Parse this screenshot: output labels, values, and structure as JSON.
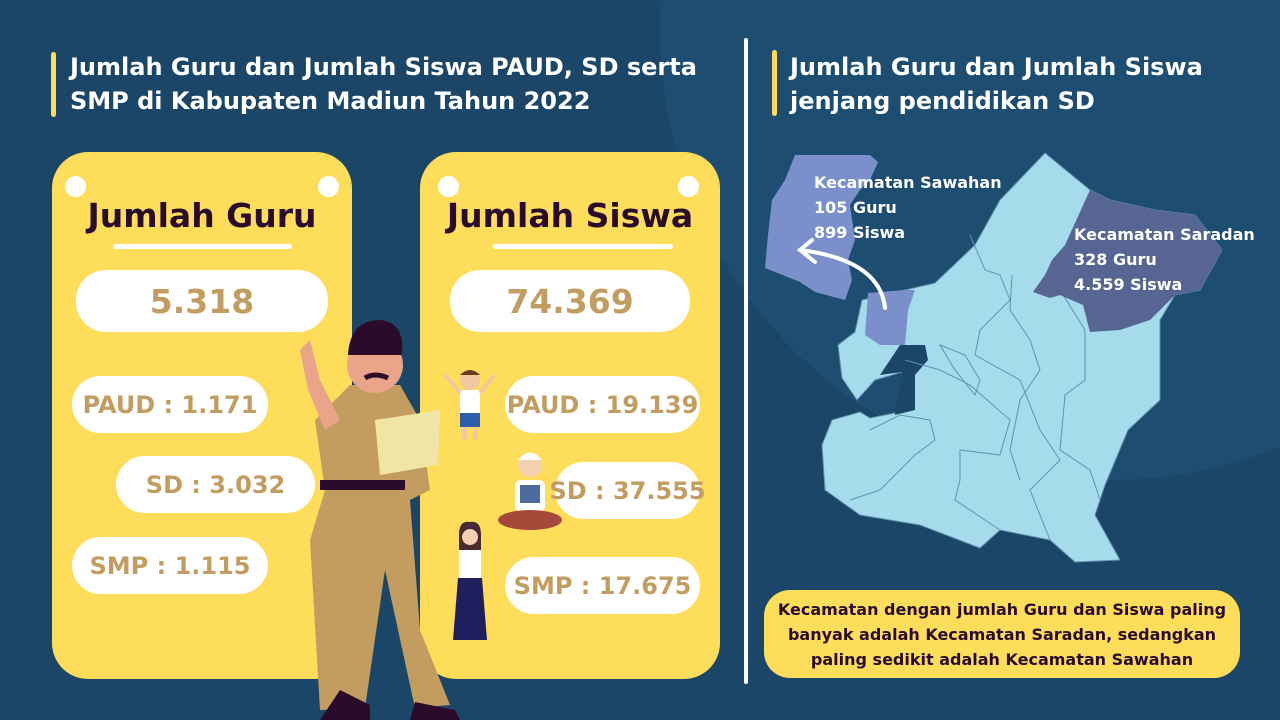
{
  "left": {
    "title_line1": "Jumlah Guru dan Jumlah Siswa PAUD, SD serta",
    "title_line2": "SMP di Kabupaten Madiun Tahun 2022"
  },
  "guru_card": {
    "title": "Jumlah Guru",
    "total": "5.318",
    "items": [
      "PAUD : 1.171",
      "SD : 3.032",
      "SMP : 1.115"
    ]
  },
  "siswa_card": {
    "title": "Jumlah Siswa",
    "total": "74.369",
    "items": [
      "PAUD : 19.139",
      "SD : 37.555",
      "SMP : 17.675"
    ]
  },
  "right": {
    "title_line1": "Jumlah Guru dan Jumlah Siswa",
    "title_line2": "jenjang pendidikan SD",
    "sawahan": {
      "name": "Kecamatan Sawahan",
      "guru": "105 Guru",
      "siswa": "899 Siswa"
    },
    "saradan": {
      "name": "Kecamatan Saradan",
      "guru": "328 Guru",
      "siswa": "4.559 Siswa"
    },
    "note": "Kecamatan dengan jumlah Guru dan Siswa paling banyak adalah Kecamatan Saradan, sedangkan paling sedikit adalah Kecamatan Sawahan"
  },
  "colors": {
    "background": "#1c4668",
    "card_yellow": "#fddd5a",
    "number_text": "#c29d62",
    "map_fill": "#a5dbeb",
    "sawahan_fill": "#7b8fcb",
    "saradan_fill": "#566591"
  }
}
